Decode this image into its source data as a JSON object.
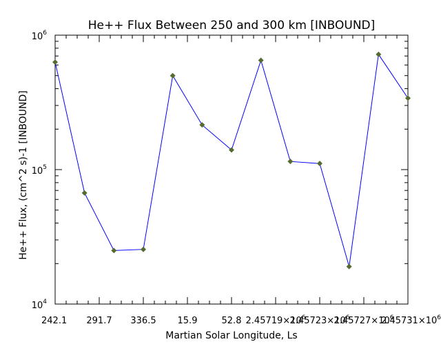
{
  "chart_data": {
    "type": "line",
    "title": "He++ Flux Between 250 and 300 km [INBOUND]",
    "xlabel": "Martian Solar Longitude, Ls",
    "ylabel": "He++ Flux, (cm^2 s)-1 [INBOUND]",
    "yscale": "log",
    "ylim": [
      10000,
      1000000
    ],
    "grid": false,
    "legend": "none",
    "x_tick_labels": [
      "242.1",
      "291.7",
      "336.5",
      "15.9",
      "52.8",
      "2.45719×10",
      "2.45723×10",
      "2.45727×10",
      "2.45731×10"
    ],
    "x_tick_exponent": "6",
    "y_ticks": [
      {
        "base": "10",
        "exp": "4",
        "value": 10000
      },
      {
        "base": "10",
        "exp": "5",
        "value": 100000
      },
      {
        "base": "10",
        "exp": "6",
        "value": 1000000
      }
    ],
    "series": [
      {
        "color": "#0000ff",
        "marker_color": "#556b2f",
        "values": [
          630000,
          67000,
          25000,
          25500,
          500000,
          215000,
          140000,
          650000,
          115000,
          111000,
          19000,
          720000,
          340000
        ]
      }
    ]
  }
}
